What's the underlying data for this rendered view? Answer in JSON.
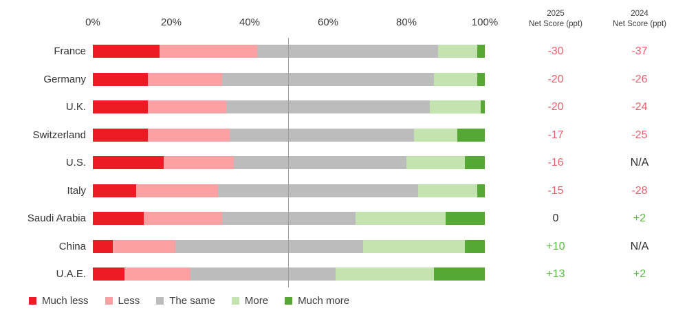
{
  "chart_data": {
    "type": "bar",
    "orientation": "horizontal-stacked",
    "title": "",
    "x_axis": {
      "tick_labels": [
        "0%",
        "20%",
        "40%",
        "60%",
        "80%",
        "100%"
      ],
      "tick_values": [
        0,
        20,
        40,
        60,
        80,
        100
      ],
      "range": [
        0,
        100
      ],
      "reference_line_value": 50,
      "grid": false
    },
    "legend_position": "bottom",
    "legend": [
      {
        "label": "Much less",
        "color": "#ed1c24"
      },
      {
        "label": "Less",
        "color": "#fba1a4"
      },
      {
        "label": "The same",
        "color": "#bcbcbc"
      },
      {
        "label": "More",
        "color": "#c3e4ae"
      },
      {
        "label": "Much more",
        "color": "#56a834"
      }
    ],
    "score_columns": [
      {
        "title_line1": "2025",
        "title_line2": "Net Score (ppt)"
      },
      {
        "title_line1": "2024",
        "title_line2": "Net Score (ppt)"
      }
    ],
    "rows": [
      {
        "country": "France",
        "segments": [
          17,
          25,
          46,
          10,
          2
        ],
        "net_2025": "-30",
        "net_2025_tone": "negative",
        "net_2024": "-37",
        "net_2024_tone": "negative"
      },
      {
        "country": "Germany",
        "segments": [
          14,
          19,
          54,
          11,
          2
        ],
        "net_2025": "-20",
        "net_2025_tone": "negative",
        "net_2024": "-26",
        "net_2024_tone": "negative"
      },
      {
        "country": "U.K.",
        "segments": [
          14,
          20,
          52,
          13,
          1
        ],
        "net_2025": "-20",
        "net_2025_tone": "negative",
        "net_2024": "-24",
        "net_2024_tone": "negative"
      },
      {
        "country": "Switzerland",
        "segments": [
          14,
          21,
          47,
          11,
          7
        ],
        "net_2025": "-17",
        "net_2025_tone": "negative",
        "net_2024": "-25",
        "net_2024_tone": "negative"
      },
      {
        "country": "U.S.",
        "segments": [
          18,
          18,
          44,
          15,
          5
        ],
        "net_2025": "-16",
        "net_2025_tone": "negative",
        "net_2024": "N/A",
        "net_2024_tone": "neutral"
      },
      {
        "country": "Italy",
        "segments": [
          11,
          21,
          51,
          15,
          2
        ],
        "net_2025": "-15",
        "net_2025_tone": "negative",
        "net_2024": "-28",
        "net_2024_tone": "negative"
      },
      {
        "country": "Saudi Arabia",
        "segments": [
          13,
          20,
          34,
          23,
          10
        ],
        "net_2025": "0",
        "net_2025_tone": "neutral",
        "net_2024": "+2",
        "net_2024_tone": "positive"
      },
      {
        "country": "China",
        "segments": [
          5,
          16,
          48,
          26,
          5
        ],
        "net_2025": "+10",
        "net_2025_tone": "positive",
        "net_2024": "N/A",
        "net_2024_tone": "neutral"
      },
      {
        "country": "U.A.E.",
        "segments": [
          8,
          17,
          37,
          25,
          13
        ],
        "net_2025": "+13",
        "net_2025_tone": "positive",
        "net_2024": "+2",
        "net_2024_tone": "positive"
      }
    ],
    "colors": {
      "net_negative_text": "#ec5f6c",
      "net_positive_text": "#5eba46",
      "net_neutral_text": "#2e2e2e",
      "reference_line": "#9e9e9e",
      "axis_text": "#3a3a3a"
    }
  }
}
